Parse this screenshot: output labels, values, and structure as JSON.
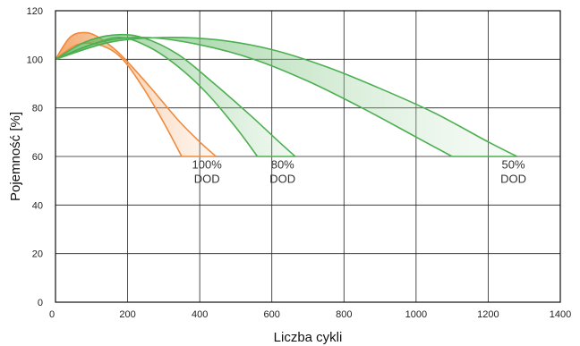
{
  "chart_data": {
    "type": "area",
    "title": "",
    "xlabel": "Liczba cykli",
    "ylabel": "Pojemność [%]",
    "xlim": [
      0,
      1400
    ],
    "ylim": [
      0,
      120
    ],
    "xticks": [
      0,
      200,
      400,
      600,
      800,
      1000,
      1200,
      1400
    ],
    "yticks": [
      0,
      20,
      40,
      60,
      80,
      100,
      120
    ],
    "grid": true,
    "legend": "none",
    "series": [
      {
        "color": "#f08a3c",
        "fill_color": "#f8c69e",
        "upper": {
          "x": [
            0,
            40,
            80,
            120,
            180,
            260,
            340,
            400,
            445
          ],
          "y": [
            100,
            109,
            111,
            109,
            102,
            89,
            75,
            66,
            60
          ]
        },
        "lower": {
          "x": [
            0,
            60,
            120,
            180,
            240,
            300,
            350
          ],
          "y": [
            100,
            106,
            106,
            101,
            89,
            74,
            60
          ]
        }
      },
      {
        "color": "#4caf50",
        "fill_color": "#a5d6a7",
        "upper": {
          "x": [
            0,
            80,
            160,
            240,
            340,
            440,
            540,
            620,
            665
          ],
          "y": [
            100,
            107,
            110,
            109,
            102,
            90,
            77,
            66,
            60
          ]
        },
        "lower": {
          "x": [
            0,
            100,
            180,
            260,
            340,
            420,
            500,
            560
          ],
          "y": [
            100,
            106,
            109,
            105,
            97,
            86,
            72,
            60
          ]
        }
      },
      {
        "color": "#4caf50",
        "fill_color": "#c8e6c9",
        "upper": {
          "x": [
            0,
            150,
            300,
            450,
            600,
            750,
            900,
            1050,
            1200,
            1280
          ],
          "y": [
            100,
            107,
            109,
            108,
            104,
            97,
            88,
            78,
            66,
            60
          ]
        },
        "lower": {
          "x": [
            0,
            120,
            250,
            400,
            550,
            700,
            850,
            1000,
            1100
          ],
          "y": [
            100,
            107,
            109,
            106,
            100,
            91,
            80,
            68,
            60
          ]
        }
      }
    ],
    "annotations": [
      {
        "lines": [
          "100%",
          "DOD"
        ],
        "x": 400,
        "y": 58
      },
      {
        "lines": [
          "80%",
          "DOD"
        ],
        "x": 610,
        "y": 58
      },
      {
        "lines": [
          "50%",
          "DOD"
        ],
        "x": 1250,
        "y": 58
      }
    ]
  }
}
